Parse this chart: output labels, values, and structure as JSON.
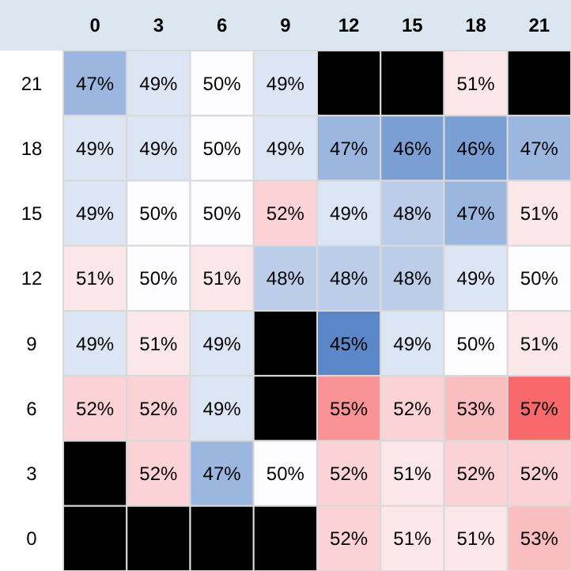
{
  "chart_data": {
    "type": "heatmap",
    "categories": [
      "0",
      "3",
      "6",
      "9",
      "12",
      "15",
      "18",
      "21"
    ],
    "y_categories": [
      "21",
      "18",
      "15",
      "12",
      "9",
      "6",
      "3",
      "0"
    ],
    "cells": [
      [
        47,
        49,
        50,
        49,
        null,
        null,
        51,
        null
      ],
      [
        49,
        49,
        50,
        49,
        47,
        46,
        46,
        47
      ],
      [
        49,
        50,
        50,
        52,
        49,
        48,
        47,
        51
      ],
      [
        51,
        50,
        51,
        48,
        48,
        48,
        49,
        50
      ],
      [
        49,
        51,
        49,
        null,
        45,
        49,
        50,
        51
      ],
      [
        52,
        52,
        49,
        null,
        55,
        52,
        53,
        57
      ],
      [
        null,
        52,
        47,
        50,
        52,
        51,
        52,
        52
      ],
      [
        null,
        null,
        null,
        null,
        52,
        51,
        51,
        53
      ]
    ],
    "cell_labels": [
      [
        "47%",
        "49%",
        "50%",
        "49%",
        null,
        null,
        "51%",
        null
      ],
      [
        "49%",
        "49%",
        "50%",
        "49%",
        "47%",
        "46%",
        "46%",
        "47%"
      ],
      [
        "49%",
        "50%",
        "50%",
        "52%",
        "49%",
        "48%",
        "47%",
        "51%"
      ],
      [
        "51%",
        "50%",
        "51%",
        "48%",
        "48%",
        "48%",
        "49%",
        "50%"
      ],
      [
        "49%",
        "51%",
        "49%",
        null,
        "45%",
        "49%",
        "50%",
        "51%"
      ],
      [
        "52%",
        "52%",
        "49%",
        null,
        "55%",
        "52%",
        "53%",
        "57%"
      ],
      [
        null,
        "52%",
        "47%",
        "50%",
        "52%",
        "51%",
        "52%",
        "52%"
      ],
      [
        null,
        null,
        null,
        null,
        "52%",
        "51%",
        "51%",
        "53%"
      ]
    ]
  }
}
